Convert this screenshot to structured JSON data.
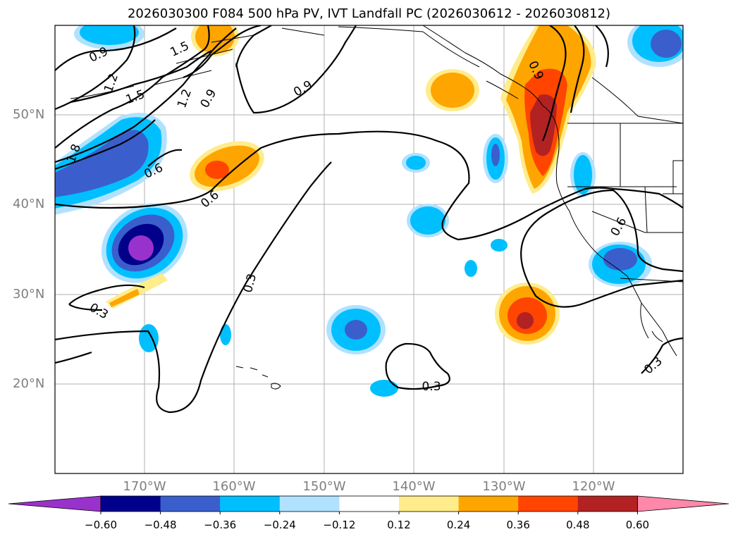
{
  "title": "2026030300 F084 500 hPa PV, IVT Landfall PC (2026030612 - 2026030812)",
  "lat_labels": [
    "50°N",
    "40°N",
    "30°N",
    "20°N"
  ],
  "lon_labels": [
    "170°W",
    "160°W",
    "150°W",
    "140°W",
    "130°W",
    "120°W"
  ],
  "contour_labels": [
    "0.9",
    "1.5",
    "1.2",
    "1.5",
    "1.2",
    "0.9",
    "0.9",
    "1.8",
    "0.6",
    "0.6",
    "0.3",
    "0.3",
    "0.3",
    "0.6",
    "0.3",
    "0.9"
  ],
  "colorbar": {
    "ticks": [
      "−0.60",
      "−0.48",
      "−0.36",
      "−0.24",
      "−0.12",
      "0.12",
      "0.24",
      "0.36",
      "0.48",
      "0.60"
    ],
    "colors": [
      "#9932cc",
      "#00008b",
      "#3a5fcd",
      "#00bfff",
      "#b0e2ff",
      "#ffffff",
      "#ffec8b",
      "#ffa500",
      "#ff4500",
      "#b22222",
      "#ff88aa"
    ]
  },
  "colors": {
    "purple": "#9932cc",
    "navy": "#00008b",
    "royal": "#3a5fcd",
    "sky": "#00bfff",
    "lightblue": "#b0e2ff",
    "yellow": "#ffec8b",
    "orange": "#ffa500",
    "redorange": "#ff4500",
    "darkred": "#b22222",
    "pink": "#ff88aa"
  }
}
